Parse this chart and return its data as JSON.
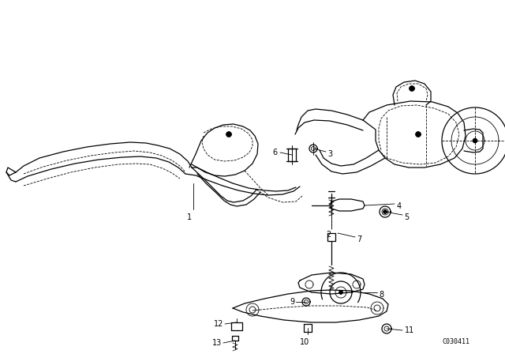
{
  "background_color": "#ffffff",
  "figure_width": 6.4,
  "figure_height": 4.48,
  "dpi": 100,
  "diagram_code": "C030411",
  "line_color": "#000000",
  "text_color": "#000000",
  "label_fontsize": 7.0,
  "border_color": "#cccccc"
}
